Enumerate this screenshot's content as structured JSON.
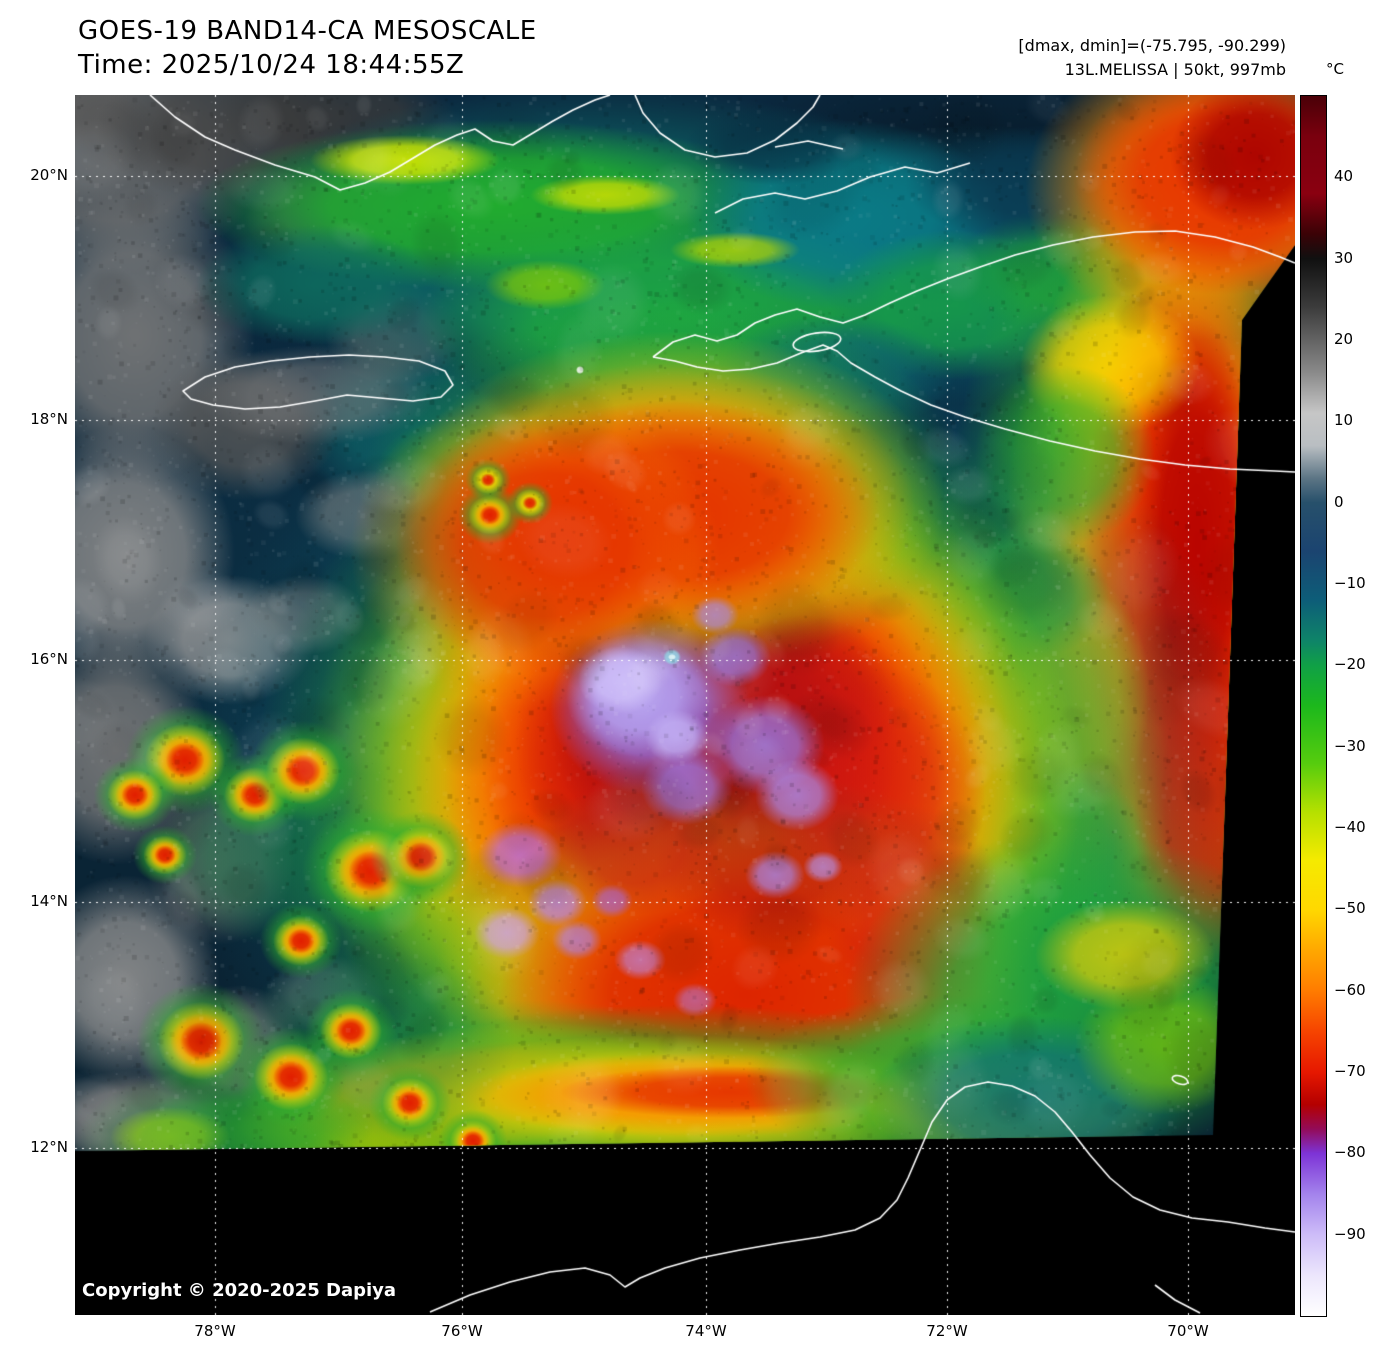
{
  "header": {
    "title": "GOES-19 BAND14-CA MESOSCALE",
    "time_line": "Time: 2025/10/24 18:44:55Z",
    "range_line": "[dmax, dmin]=(-75.795, -90.299)",
    "storm_line": "13L.MELISSA | 50kt, 997mb"
  },
  "colorbar": {
    "unit_label": "°C",
    "ticks": [
      "40",
      "30",
      "20",
      "10",
      "0",
      "−10",
      "−20",
      "−30",
      "−40",
      "−50",
      "−60",
      "−70",
      "−80",
      "−90"
    ],
    "gradient": [
      {
        "t": 50,
        "color": "#4a0007"
      },
      {
        "t": 45,
        "color": "#7a000e"
      },
      {
        "t": 38,
        "color": "#8a0010"
      },
      {
        "t": 33,
        "color": "#3a0206"
      },
      {
        "t": 30,
        "color": "#101010"
      },
      {
        "t": 24,
        "color": "#3c3c3c"
      },
      {
        "t": 16,
        "color": "#8a8a8a"
      },
      {
        "t": 11,
        "color": "#c6c6c6"
      },
      {
        "t": 7,
        "color": "#b9bec2"
      },
      {
        "t": 3,
        "color": "#5c7585"
      },
      {
        "t": 0,
        "color": "#27506b"
      },
      {
        "t": -6,
        "color": "#1b4470"
      },
      {
        "t": -12,
        "color": "#0d5d78"
      },
      {
        "t": -17,
        "color": "#0e8468"
      },
      {
        "t": -20,
        "color": "#10a046"
      },
      {
        "t": -25,
        "color": "#1cb81c"
      },
      {
        "t": -32,
        "color": "#55cc0e"
      },
      {
        "t": -38,
        "color": "#b5e000"
      },
      {
        "t": -44,
        "color": "#f5ea00"
      },
      {
        "t": -50,
        "color": "#ffd800"
      },
      {
        "t": -55,
        "color": "#ffa800"
      },
      {
        "t": -60,
        "color": "#ff7c00"
      },
      {
        "t": -65,
        "color": "#f64400"
      },
      {
        "t": -70,
        "color": "#e61800"
      },
      {
        "t": -74,
        "color": "#b40000"
      },
      {
        "t": -77,
        "color": "#930b58"
      },
      {
        "t": -80,
        "color": "#7d33d6"
      },
      {
        "t": -85,
        "color": "#a383ec"
      },
      {
        "t": -90,
        "color": "#cdbcf8"
      },
      {
        "t": -95,
        "color": "#ece6fc"
      },
      {
        "t": -100,
        "color": "#ffffff"
      }
    ]
  },
  "axes": {
    "lat_ticks": [
      "20°N",
      "18°N",
      "16°N",
      "14°N",
      "12°N"
    ],
    "lon_ticks": [
      "78°W",
      "76°W",
      "74°W",
      "72°W",
      "70°W"
    ]
  },
  "map_overlay": {
    "copyright": "Copyright © 2020-2025 Dapiya"
  }
}
